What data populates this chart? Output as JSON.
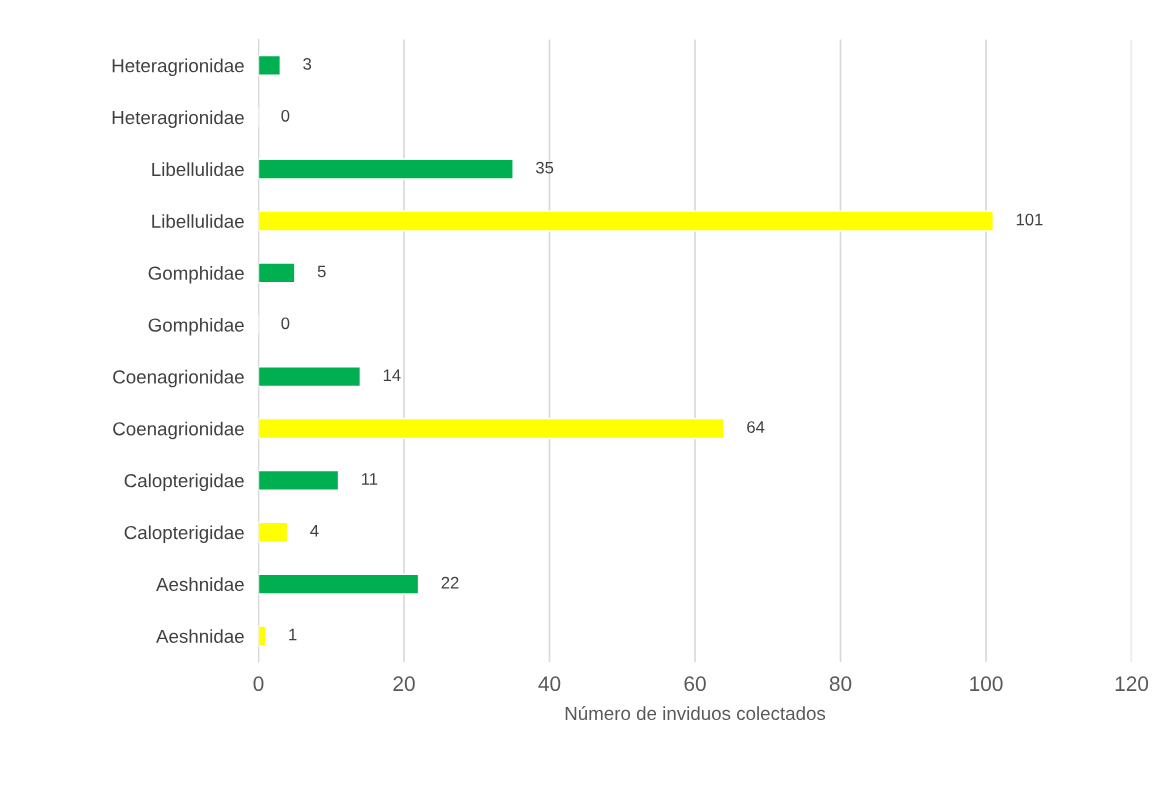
{
  "chart_data": {
    "type": "bar",
    "orientation": "horizontal",
    "xlabel": "Número de inviduos colectados",
    "categories": [
      "Heteragrionidae",
      "Heteragrionidae",
      "Libellulidae",
      "Libellulidae",
      "Gomphidae",
      "Gomphidae",
      "Coenagrionidae",
      "Coenagrionidae",
      "Calopterigidae",
      "Calopterigidae",
      "Aeshnidae",
      "Aeshnidae"
    ],
    "values": [
      3,
      0,
      35,
      101,
      5,
      0,
      14,
      64,
      11,
      4,
      22,
      1
    ],
    "colors": [
      "#00b050",
      null,
      "#00b050",
      "#ffff00",
      "#00b050",
      null,
      "#00b050",
      "#ffff00",
      "#00b050",
      "#ffff00",
      "#00b050",
      "#ffff00"
    ],
    "xlim": [
      0,
      120
    ],
    "xticks": [
      0,
      20,
      40,
      60,
      80,
      100,
      120
    ],
    "grid": "x",
    "data_labels": true,
    "legend": false
  }
}
